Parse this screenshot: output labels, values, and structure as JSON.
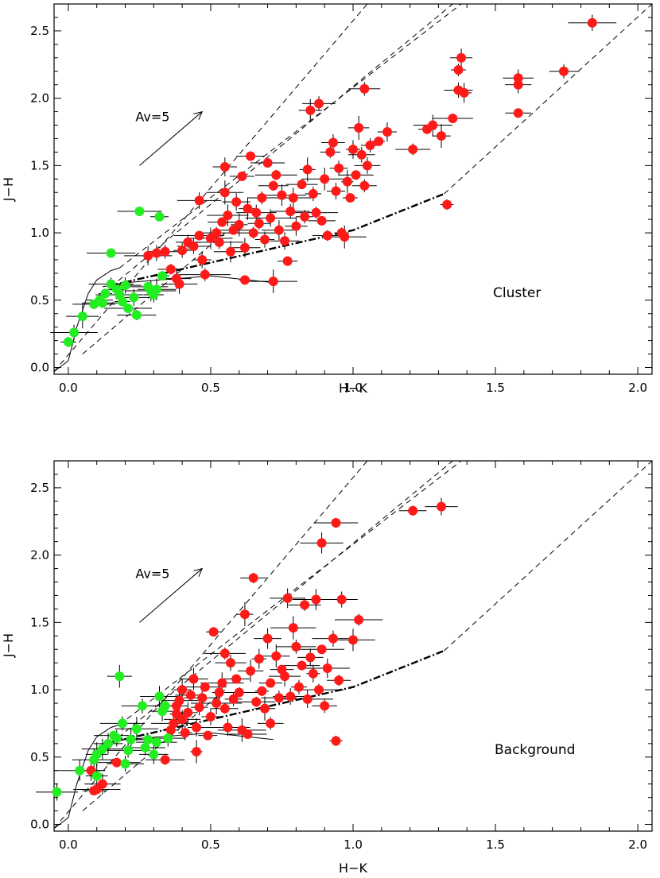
{
  "figure": {
    "title": "",
    "colors": {
      "cluster_member": "#ff1a1a",
      "ctts_green": "#22ee22",
      "lines": "#000000"
    }
  },
  "chart_data": [
    {
      "type": "scatter",
      "panel": "top",
      "label": "Cluster",
      "xlabel": "H−K",
      "ylabel": "J−H",
      "xlim": [
        -0.05,
        2.05
      ],
      "ylim": [
        -0.05,
        2.7
      ],
      "xticks": [
        0.0,
        0.5,
        1.0,
        1.5,
        2.0
      ],
      "xtick_labels": [
        "0.0",
        "0.5",
        "1.0",
        "1.5",
        "2.0"
      ],
      "yticks": [
        0.0,
        0.5,
        1.0,
        1.5,
        2.0,
        2.5
      ],
      "ytick_labels": [
        "0.0",
        "0.5",
        "1.0",
        "1.5",
        "2.0",
        "2.5"
      ],
      "reddening_label": "Av=5",
      "reddening_vector": [
        [
          0.25,
          1.5
        ],
        [
          0.47,
          1.9
        ]
      ],
      "dwarf_locus": [
        [
          -0.05,
          -0.03
        ],
        [
          0.0,
          0.05
        ],
        [
          0.03,
          0.3
        ],
        [
          0.07,
          0.55
        ],
        [
          0.1,
          0.65
        ],
        [
          0.15,
          0.72
        ],
        [
          0.18,
          0.74
        ]
      ],
      "giant_track": [
        [
          0.12,
          0.6
        ],
        [
          0.2,
          0.63
        ],
        [
          0.5,
          0.68
        ],
        [
          0.72,
          0.63
        ]
      ],
      "ctts_locus": [
        [
          0.15,
          0.61
        ],
        [
          0.5,
          0.78
        ],
        [
          1.0,
          1.02
        ],
        [
          1.32,
          1.29
        ]
      ],
      "reddening_lines": [
        [
          [
            -0.05,
            -0.03
          ],
          [
            1.05,
            2.7
          ]
        ],
        [
          [
            0.15,
            0.6
          ],
          [
            1.35,
            2.7
          ]
        ],
        [
          [
            0.18,
            0.74
          ],
          [
            1.38,
            2.7
          ]
        ],
        [
          [
            0.05,
            0.1
          ],
          [
            0.55,
            1.0
          ]
        ],
        [
          [
            1.32,
            1.29
          ],
          [
            2.05,
            2.7
          ]
        ]
      ],
      "series": [
        {
          "name": "red",
          "color": "#ff1a1a",
          "points": [
            [
              0.28,
              0.83
            ],
            [
              0.31,
              0.85
            ],
            [
              0.34,
              0.86
            ],
            [
              0.36,
              0.73
            ],
            [
              0.38,
              0.66
            ],
            [
              0.39,
              0.62
            ],
            [
              0.4,
              0.87
            ],
            [
              0.42,
              0.93
            ],
            [
              0.44,
              0.9
            ],
            [
              0.46,
              0.98
            ],
            [
              0.46,
              1.24
            ],
            [
              0.47,
              0.8
            ],
            [
              0.48,
              0.69
            ],
            [
              0.5,
              0.96
            ],
            [
              0.52,
              1.0
            ],
            [
              0.53,
              0.93
            ],
            [
              0.54,
              1.08
            ],
            [
              0.55,
              1.3
            ],
            [
              0.55,
              1.49
            ],
            [
              0.56,
              1.13
            ],
            [
              0.57,
              0.86
            ],
            [
              0.58,
              1.02
            ],
            [
              0.59,
              1.23
            ],
            [
              0.6,
              1.06
            ],
            [
              0.61,
              1.42
            ],
            [
              0.62,
              0.89
            ],
            [
              0.62,
              0.65
            ],
            [
              0.63,
              1.18
            ],
            [
              0.64,
              1.57
            ],
            [
              0.65,
              1.0
            ],
            [
              0.66,
              1.15
            ],
            [
              0.67,
              1.07
            ],
            [
              0.68,
              1.26
            ],
            [
              0.69,
              0.95
            ],
            [
              0.7,
              1.52
            ],
            [
              0.71,
              1.11
            ],
            [
              0.72,
              0.64
            ],
            [
              0.72,
              1.35
            ],
            [
              0.73,
              1.43
            ],
            [
              0.74,
              1.02
            ],
            [
              0.75,
              1.28
            ],
            [
              0.76,
              0.94
            ],
            [
              0.77,
              0.79
            ],
            [
              0.78,
              1.16
            ],
            [
              0.79,
              1.26
            ],
            [
              0.8,
              1.05
            ],
            [
              0.82,
              1.36
            ],
            [
              0.83,
              1.12
            ],
            [
              0.84,
              1.47
            ],
            [
              0.85,
              1.91
            ],
            [
              0.86,
              1.29
            ],
            [
              0.87,
              1.15
            ],
            [
              0.88,
              1.96
            ],
            [
              0.89,
              1.09
            ],
            [
              0.9,
              1.4
            ],
            [
              0.91,
              0.98
            ],
            [
              0.92,
              1.6
            ],
            [
              0.93,
              1.67
            ],
            [
              0.94,
              1.31
            ],
            [
              0.95,
              1.48
            ],
            [
              0.96,
              1.0
            ],
            [
              0.97,
              0.97
            ],
            [
              0.98,
              1.38
            ],
            [
              0.99,
              1.26
            ],
            [
              1.0,
              1.62
            ],
            [
              1.01,
              1.43
            ],
            [
              1.02,
              1.78
            ],
            [
              1.03,
              1.58
            ],
            [
              1.04,
              1.35
            ],
            [
              1.05,
              1.5
            ],
            [
              1.04,
              2.07
            ],
            [
              1.06,
              1.65
            ],
            [
              1.09,
              1.68
            ],
            [
              1.12,
              1.75
            ],
            [
              1.21,
              1.62
            ],
            [
              1.26,
              1.77
            ],
            [
              1.28,
              1.8
            ],
            [
              1.31,
              1.72
            ],
            [
              1.33,
              1.21
            ],
            [
              1.35,
              1.85
            ],
            [
              1.37,
              2.06
            ],
            [
              1.37,
              2.21
            ],
            [
              1.38,
              2.3
            ],
            [
              1.39,
              2.04
            ],
            [
              1.58,
              2.1
            ],
            [
              1.58,
              2.15
            ],
            [
              1.58,
              1.89
            ],
            [
              1.74,
              2.2
            ],
            [
              1.84,
              2.56
            ]
          ]
        },
        {
          "name": "green",
          "color": "#22ee22",
          "points": [
            [
              0.0,
              0.19
            ],
            [
              0.02,
              0.26
            ],
            [
              0.05,
              0.38
            ],
            [
              0.09,
              0.47
            ],
            [
              0.11,
              0.5
            ],
            [
              0.12,
              0.48
            ],
            [
              0.13,
              0.55
            ],
            [
              0.15,
              0.62
            ],
            [
              0.15,
              0.85
            ],
            [
              0.17,
              0.58
            ],
            [
              0.18,
              0.54
            ],
            [
              0.19,
              0.49
            ],
            [
              0.2,
              0.61
            ],
            [
              0.21,
              0.44
            ],
            [
              0.23,
              0.52
            ],
            [
              0.24,
              0.39
            ],
            [
              0.25,
              1.16
            ],
            [
              0.28,
              0.6
            ],
            [
              0.29,
              0.57
            ],
            [
              0.3,
              0.54
            ],
            [
              0.31,
              0.58
            ],
            [
              0.32,
              1.12
            ],
            [
              0.33,
              0.68
            ]
          ]
        }
      ]
    },
    {
      "type": "scatter",
      "panel": "bottom",
      "label": "Background",
      "xlabel": "H−K",
      "ylabel": "J−H",
      "xlim": [
        -0.05,
        2.05
      ],
      "ylim": [
        -0.05,
        2.7
      ],
      "xticks": [
        0.0,
        0.5,
        1.0,
        1.5,
        2.0
      ],
      "xtick_labels": [
        "0.0",
        "0.5",
        "1.0",
        "1.5",
        "2.0"
      ],
      "yticks": [
        0.0,
        0.5,
        1.0,
        1.5,
        2.0,
        2.5
      ],
      "ytick_labels": [
        "0.0",
        "0.5",
        "1.0",
        "1.5",
        "2.0",
        "2.5"
      ],
      "reddening_label": "Av=5",
      "reddening_vector": [
        [
          0.25,
          1.5
        ],
        [
          0.47,
          1.9
        ]
      ],
      "dwarf_locus": [
        [
          -0.05,
          -0.03
        ],
        [
          0.0,
          0.05
        ],
        [
          0.03,
          0.3
        ],
        [
          0.07,
          0.55
        ],
        [
          0.1,
          0.65
        ],
        [
          0.15,
          0.72
        ],
        [
          0.18,
          0.74
        ]
      ],
      "giant_track": [
        [
          0.12,
          0.6
        ],
        [
          0.2,
          0.63
        ],
        [
          0.5,
          0.68
        ],
        [
          0.72,
          0.63
        ]
      ],
      "ctts_locus": [
        [
          0.15,
          0.61
        ],
        [
          0.5,
          0.78
        ],
        [
          1.0,
          1.02
        ],
        [
          1.32,
          1.29
        ]
      ],
      "reddening_lines": [
        [
          [
            -0.05,
            -0.03
          ],
          [
            1.05,
            2.7
          ]
        ],
        [
          [
            0.15,
            0.6
          ],
          [
            1.35,
            2.7
          ]
        ],
        [
          [
            0.18,
            0.74
          ],
          [
            1.38,
            2.7
          ]
        ],
        [
          [
            0.05,
            0.1
          ],
          [
            0.55,
            1.0
          ]
        ],
        [
          [
            1.32,
            1.29
          ],
          [
            2.05,
            2.7
          ]
        ]
      ],
      "series": [
        {
          "name": "red",
          "color": "#ff1a1a",
          "points": [
            [
              0.08,
              0.4
            ],
            [
              0.09,
              0.25
            ],
            [
              0.1,
              0.26
            ],
            [
              0.12,
              0.3
            ],
            [
              0.17,
              0.46
            ],
            [
              0.34,
              0.48
            ],
            [
              0.36,
              0.7
            ],
            [
              0.37,
              0.75
            ],
            [
              0.38,
              0.82
            ],
            [
              0.38,
              0.88
            ],
            [
              0.39,
              0.92
            ],
            [
              0.4,
              0.78
            ],
            [
              0.4,
              1.0
            ],
            [
              0.41,
              0.68
            ],
            [
              0.42,
              0.83
            ],
            [
              0.43,
              0.96
            ],
            [
              0.44,
              1.08
            ],
            [
              0.45,
              0.72
            ],
            [
              0.45,
              0.54
            ],
            [
              0.46,
              0.87
            ],
            [
              0.47,
              0.94
            ],
            [
              0.48,
              1.02
            ],
            [
              0.49,
              0.66
            ],
            [
              0.5,
              0.8
            ],
            [
              0.51,
              1.43
            ],
            [
              0.52,
              0.9
            ],
            [
              0.53,
              0.98
            ],
            [
              0.54,
              1.05
            ],
            [
              0.55,
              0.86
            ],
            [
              0.55,
              1.27
            ],
            [
              0.56,
              0.72
            ],
            [
              0.57,
              1.2
            ],
            [
              0.58,
              0.93
            ],
            [
              0.59,
              1.08
            ],
            [
              0.6,
              0.98
            ],
            [
              0.61,
              0.7
            ],
            [
              0.62,
              1.56
            ],
            [
              0.63,
              0.67
            ],
            [
              0.64,
              1.14
            ],
            [
              0.65,
              1.83
            ],
            [
              0.66,
              0.91
            ],
            [
              0.67,
              1.23
            ],
            [
              0.68,
              0.99
            ],
            [
              0.69,
              0.86
            ],
            [
              0.7,
              1.38
            ],
            [
              0.71,
              1.05
            ],
            [
              0.71,
              0.75
            ],
            [
              0.73,
              1.25
            ],
            [
              0.74,
              0.94
            ],
            [
              0.75,
              1.15
            ],
            [
              0.76,
              1.1
            ],
            [
              0.77,
              1.68
            ],
            [
              0.78,
              0.95
            ],
            [
              0.79,
              1.46
            ],
            [
              0.8,
              1.32
            ],
            [
              0.81,
              1.02
            ],
            [
              0.82,
              1.18
            ],
            [
              0.83,
              1.63
            ],
            [
              0.84,
              0.93
            ],
            [
              0.85,
              1.24
            ],
            [
              0.86,
              1.12
            ],
            [
              0.87,
              1.67
            ],
            [
              0.88,
              1.0
            ],
            [
              0.89,
              1.3
            ],
            [
              0.89,
              2.09
            ],
            [
              0.9,
              0.88
            ],
            [
              0.91,
              1.16
            ],
            [
              0.93,
              1.38
            ],
            [
              0.94,
              2.24
            ],
            [
              0.94,
              0.62
            ],
            [
              0.95,
              1.07
            ],
            [
              0.96,
              1.67
            ],
            [
              1.0,
              1.37
            ],
            [
              1.02,
              1.52
            ],
            [
              1.21,
              2.33
            ],
            [
              1.31,
              2.36
            ]
          ]
        },
        {
          "name": "green",
          "color": "#22ee22",
          "points": [
            [
              -0.04,
              0.24
            ],
            [
              0.04,
              0.4
            ],
            [
              0.09,
              0.48
            ],
            [
              0.1,
              0.52
            ],
            [
              0.1,
              0.36
            ],
            [
              0.12,
              0.56
            ],
            [
              0.14,
              0.6
            ],
            [
              0.16,
              0.66
            ],
            [
              0.17,
              0.64
            ],
            [
              0.18,
              1.1
            ],
            [
              0.19,
              0.75
            ],
            [
              0.2,
              0.45
            ],
            [
              0.21,
              0.55
            ],
            [
              0.22,
              0.63
            ],
            [
              0.24,
              0.71
            ],
            [
              0.26,
              0.88
            ],
            [
              0.27,
              0.57
            ],
            [
              0.28,
              0.63
            ],
            [
              0.3,
              0.52
            ],
            [
              0.31,
              0.61
            ],
            [
              0.32,
              0.95
            ],
            [
              0.33,
              0.84
            ],
            [
              0.34,
              0.88
            ],
            [
              0.35,
              0.64
            ]
          ]
        }
      ]
    }
  ]
}
